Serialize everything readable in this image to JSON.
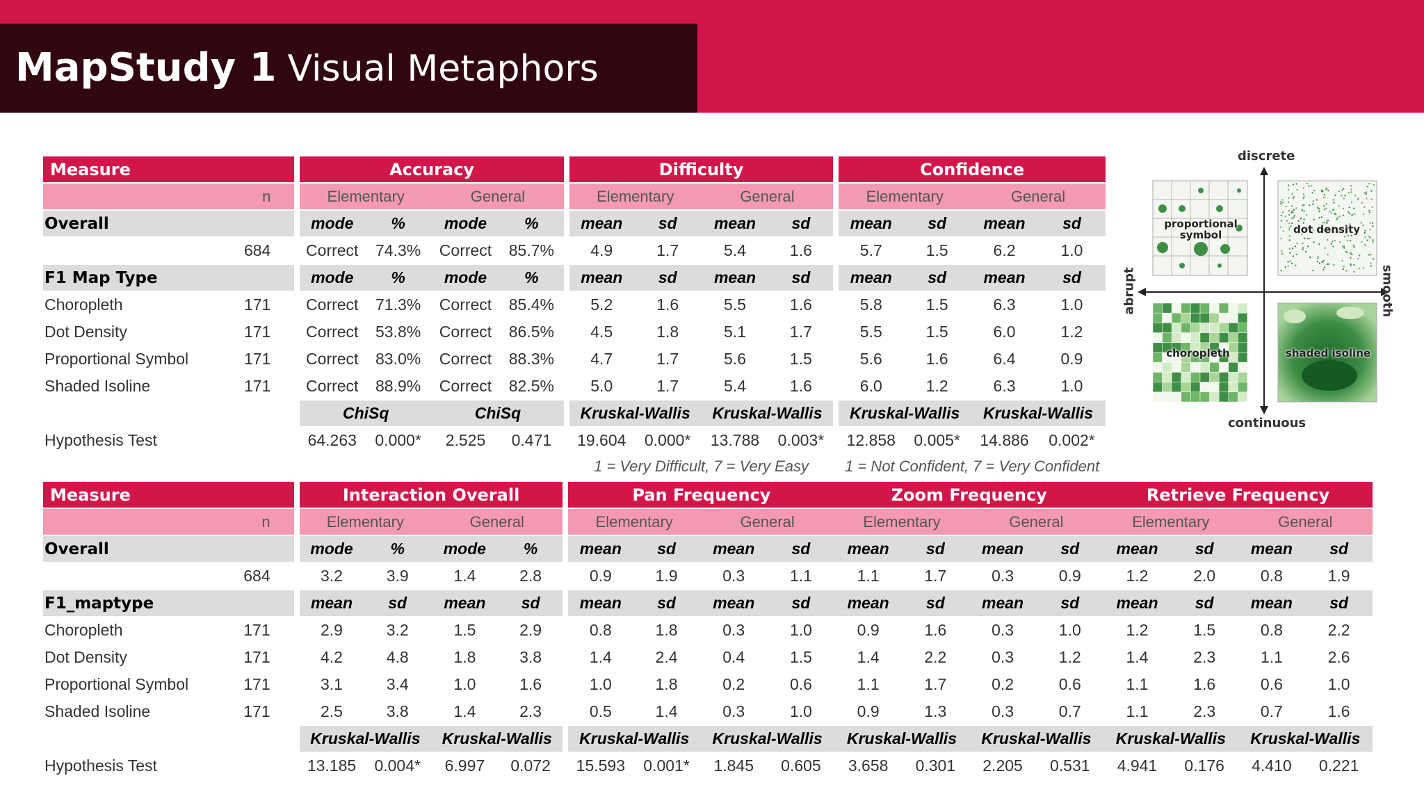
{
  "title": {
    "bold": "MapStudy 1",
    "rest": "Visual Metaphors"
  },
  "table1": {
    "h_measure": "Measure",
    "groups": [
      "Accuracy",
      "Difficulty",
      "Confidence"
    ],
    "n_label": "n",
    "subgroups": [
      "Elementary",
      "General",
      "Elementary",
      "General",
      "Elementary",
      "General"
    ],
    "overall_label": "Overall",
    "overall_cols": [
      "mode",
      "%",
      "mode",
      "%",
      "mean",
      "sd",
      "mean",
      "sd",
      "mean",
      "sd",
      "mean",
      "sd"
    ],
    "overall_row": {
      "label": "",
      "n": "684",
      "cells": [
        "Correct",
        "74.3%",
        "Correct",
        "85.7%",
        "4.9",
        "1.7",
        "5.4",
        "1.6",
        "5.7",
        "1.5",
        "6.2",
        "1.0"
      ]
    },
    "section_label": "F1 Map Type",
    "section_cols": [
      "mode",
      "%",
      "mode",
      "%",
      "mean",
      "sd",
      "mean",
      "sd",
      "mean",
      "sd",
      "mean",
      "sd"
    ],
    "rows": [
      {
        "label": "Choropleth",
        "n": "171",
        "cells": [
          "Correct",
          "71.3%",
          "Correct",
          "85.4%",
          "5.2",
          "1.6",
          "5.5",
          "1.6",
          "5.8",
          "1.5",
          "6.3",
          "1.0"
        ]
      },
      {
        "label": "Dot Density",
        "n": "171",
        "cells": [
          "Correct",
          "53.8%",
          "Correct",
          "86.5%",
          "4.5",
          "1.8",
          "5.1",
          "1.7",
          "5.5",
          "1.5",
          "6.0",
          "1.2"
        ]
      },
      {
        "label": "Proportional Symbol",
        "n": "171",
        "cells": [
          "Correct",
          "83.0%",
          "Correct",
          "88.3%",
          "4.7",
          "1.7",
          "5.6",
          "1.5",
          "5.6",
          "1.6",
          "6.4",
          "0.9"
        ]
      },
      {
        "label": "Shaded Isoline",
        "n": "171",
        "cells": [
          "Correct",
          "88.9%",
          "Correct",
          "82.5%",
          "5.0",
          "1.7",
          "5.4",
          "1.6",
          "6.0",
          "1.2",
          "6.3",
          "1.0"
        ]
      }
    ],
    "tests": [
      "ChiSq",
      "ChiSq",
      "Kruskal-Wallis",
      "Kruskal-Wallis",
      "Kruskal-Wallis",
      "Kruskal-Wallis"
    ],
    "hyp_label": "Hypothesis Test",
    "hyp_cells": [
      "64.263",
      "0.000*",
      "2.525",
      "0.471",
      "19.604",
      "0.000*",
      "13.788",
      "0.003*",
      "12.858",
      "0.005*",
      "14.886",
      "0.002*"
    ],
    "note_difficulty": "1 = Very Difficult, 7 = Very Easy",
    "note_confidence": "1 = Not Confident, 7 = Very Confident"
  },
  "table2": {
    "h_measure": "Measure",
    "groups": [
      "Interaction Overall",
      "Pan Frequency",
      "Zoom Frequency",
      "Retrieve Frequency"
    ],
    "n_label": "n",
    "subgroups": [
      "Elementary",
      "General",
      "Elementary",
      "General",
      "Elementary",
      "General",
      "Elementary",
      "General"
    ],
    "overall_label": "Overall",
    "overall_cols": [
      "mode",
      "%",
      "mode",
      "%",
      "mean",
      "sd",
      "mean",
      "sd",
      "mean",
      "sd",
      "mean",
      "sd",
      "mean",
      "sd",
      "mean",
      "sd"
    ],
    "overall_row": {
      "label": "",
      "n": "684",
      "cells": [
        "3.2",
        "3.9",
        "1.4",
        "2.8",
        "0.9",
        "1.9",
        "0.3",
        "1.1",
        "1.1",
        "1.7",
        "0.3",
        "0.9",
        "1.2",
        "2.0",
        "0.8",
        "1.9"
      ]
    },
    "section_label": "F1_maptype",
    "section_cols": [
      "mean",
      "sd",
      "mean",
      "sd",
      "mean",
      "sd",
      "mean",
      "sd",
      "mean",
      "sd",
      "mean",
      "sd",
      "mean",
      "sd",
      "mean",
      "sd"
    ],
    "rows": [
      {
        "label": "Choropleth",
        "n": "171",
        "cells": [
          "2.9",
          "3.2",
          "1.5",
          "2.9",
          "0.8",
          "1.8",
          "0.3",
          "1.0",
          "0.9",
          "1.6",
          "0.3",
          "1.0",
          "1.2",
          "1.5",
          "0.8",
          "2.2"
        ]
      },
      {
        "label": "Dot Density",
        "n": "171",
        "cells": [
          "4.2",
          "4.8",
          "1.8",
          "3.8",
          "1.4",
          "2.4",
          "0.4",
          "1.5",
          "1.4",
          "2.2",
          "0.3",
          "1.2",
          "1.4",
          "2.3",
          "1.1",
          "2.6"
        ]
      },
      {
        "label": "Proportional Symbol",
        "n": "171",
        "cells": [
          "3.1",
          "3.4",
          "1.0",
          "1.6",
          "1.0",
          "1.8",
          "0.2",
          "0.6",
          "1.1",
          "1.7",
          "0.2",
          "0.6",
          "1.1",
          "1.6",
          "0.6",
          "1.0"
        ]
      },
      {
        "label": "Shaded Isoline",
        "n": "171",
        "cells": [
          "2.5",
          "3.8",
          "1.4",
          "2.3",
          "0.5",
          "1.4",
          "0.3",
          "1.0",
          "0.9",
          "1.3",
          "0.3",
          "0.7",
          "1.1",
          "2.3",
          "0.7",
          "1.6"
        ]
      }
    ],
    "tests": [
      "Kruskal-Wallis",
      "Kruskal-Wallis",
      "Kruskal-Wallis",
      "Kruskal-Wallis",
      "Kruskal-Wallis",
      "Kruskal-Wallis",
      "Kruskal-Wallis",
      "Kruskal-Wallis"
    ],
    "hyp_label": "Hypothesis Test",
    "hyp_cells": [
      "13.185",
      "0.004*",
      "6.997",
      "0.072",
      "15.593",
      "0.001*",
      "1.845",
      "0.605",
      "3.658",
      "0.301",
      "2.205",
      "0.531",
      "4.941",
      "0.176",
      "4.410",
      "0.221"
    ]
  },
  "diagram": {
    "top": "discrete",
    "bottom": "continuous",
    "left": "abrupt",
    "right": "smooth",
    "q1": "proportional symbol",
    "q2": "dot density",
    "q3": "choropleth",
    "q4": "shaded isoline"
  },
  "colors": {
    "accent": "#d3164a",
    "dark": "#300611",
    "pink": "#f39ab2",
    "gray": "#dcdcdc"
  }
}
